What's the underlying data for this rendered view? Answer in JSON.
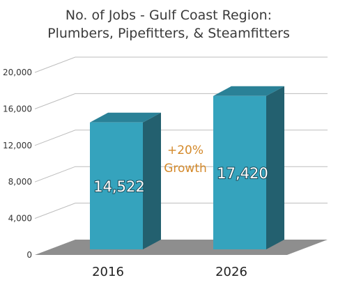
{
  "chart_data": {
    "type": "bar",
    "title_lines": [
      "No. of Jobs - Gulf Coast Region:",
      "Plumbers, Pipefitters, & Steamfitters"
    ],
    "categories": [
      "2016",
      "2026"
    ],
    "values": [
      14522,
      17420
    ],
    "value_labels": [
      "14,522",
      "17,420"
    ],
    "xlabel": "",
    "ylabel": "",
    "ylim": [
      0,
      20000
    ],
    "yticks": [
      0,
      4000,
      8000,
      12000,
      16000,
      20000
    ],
    "ytick_labels": [
      "0",
      "4,000",
      "8,000",
      "12,000",
      "16,000",
      "20,000"
    ],
    "grid": true,
    "style": "3d-column",
    "annotation": {
      "lines": [
        "+20%",
        "Growth"
      ]
    },
    "colors": {
      "bar_front": "#35a3bd",
      "bar_side": "#23606f",
      "bar_top": "#2a8197",
      "floor": "#8e8e8e",
      "grid": "#bdbdbd",
      "annotation": "#d4892a"
    }
  }
}
